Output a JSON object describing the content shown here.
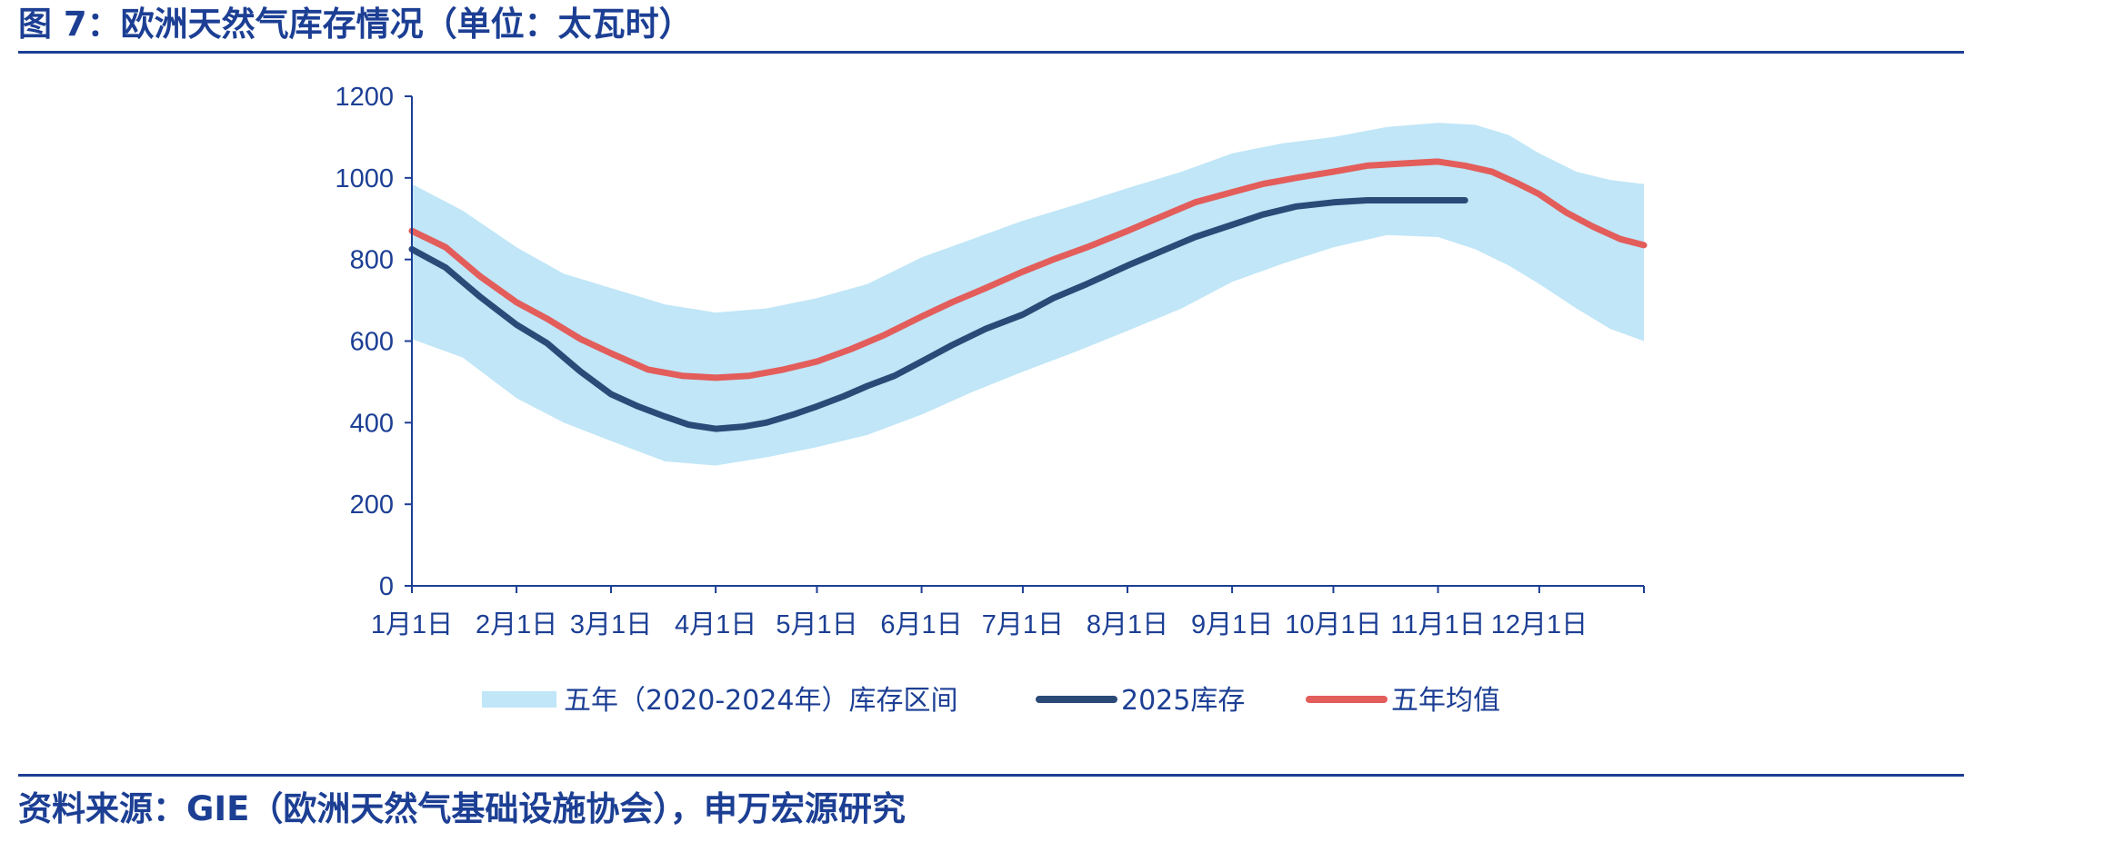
{
  "figure": {
    "title": "图 7：欧洲天然气库存情况（单位：太瓦时）",
    "source": "资料来源：GIE（欧洲天然气基础设施协会），申万宏源研究"
  },
  "colors": {
    "title": "#1c3f94",
    "band": "#c0e6f7",
    "line_2025": "#2a4a77",
    "line_avg": "#e35d5b",
    "axis": "#1c3f94"
  },
  "chart_data": {
    "type": "area",
    "title": "",
    "xlabel": "",
    "ylabel": "",
    "ylim": [
      0,
      1200
    ],
    "yticks": [
      0,
      200,
      400,
      600,
      800,
      1000,
      1200
    ],
    "x_domain_days": [
      0,
      365
    ],
    "xticks": [
      {
        "day": 0,
        "label": "1月1日"
      },
      {
        "day": 31,
        "label": "2月1日"
      },
      {
        "day": 59,
        "label": "3月1日"
      },
      {
        "day": 90,
        "label": "4月1日"
      },
      {
        "day": 120,
        "label": "5月1日"
      },
      {
        "day": 151,
        "label": "6月1日"
      },
      {
        "day": 181,
        "label": "7月1日"
      },
      {
        "day": 212,
        "label": "8月1日"
      },
      {
        "day": 243,
        "label": "9月1日"
      },
      {
        "day": 273,
        "label": "10月1日"
      },
      {
        "day": 304,
        "label": "11月1日"
      },
      {
        "day": 334,
        "label": "12月1日"
      }
    ],
    "grid": false,
    "legend_position": "bottom",
    "legend": [
      {
        "key": "band",
        "label": "五年（2020-2024年）库存区间"
      },
      {
        "key": "line_2025",
        "label": "2025库存"
      },
      {
        "key": "line_avg",
        "label": "五年均值"
      }
    ],
    "band": {
      "name": "五年（2020-2024年）库存区间",
      "points": [
        {
          "day": 0,
          "low": 605,
          "high": 985
        },
        {
          "day": 15,
          "low": 560,
          "high": 920
        },
        {
          "day": 31,
          "low": 460,
          "high": 830
        },
        {
          "day": 45,
          "low": 400,
          "high": 765
        },
        {
          "day": 59,
          "low": 355,
          "high": 730
        },
        {
          "day": 75,
          "low": 305,
          "high": 690
        },
        {
          "day": 90,
          "low": 295,
          "high": 670
        },
        {
          "day": 105,
          "low": 315,
          "high": 680
        },
        {
          "day": 120,
          "low": 340,
          "high": 705
        },
        {
          "day": 135,
          "low": 370,
          "high": 740
        },
        {
          "day": 151,
          "low": 420,
          "high": 805
        },
        {
          "day": 166,
          "low": 475,
          "high": 850
        },
        {
          "day": 181,
          "low": 525,
          "high": 895
        },
        {
          "day": 197,
          "low": 575,
          "high": 935
        },
        {
          "day": 212,
          "low": 625,
          "high": 975
        },
        {
          "day": 228,
          "low": 680,
          "high": 1015
        },
        {
          "day": 243,
          "low": 745,
          "high": 1060
        },
        {
          "day": 258,
          "low": 790,
          "high": 1085
        },
        {
          "day": 273,
          "low": 830,
          "high": 1100
        },
        {
          "day": 289,
          "low": 860,
          "high": 1125
        },
        {
          "day": 304,
          "low": 855,
          "high": 1135
        },
        {
          "day": 315,
          "low": 825,
          "high": 1130
        },
        {
          "day": 325,
          "low": 785,
          "high": 1105
        },
        {
          "day": 334,
          "low": 740,
          "high": 1060
        },
        {
          "day": 345,
          "low": 680,
          "high": 1015
        },
        {
          "day": 355,
          "low": 630,
          "high": 995
        },
        {
          "day": 365,
          "low": 600,
          "high": 985
        }
      ]
    },
    "series": [
      {
        "name": "2025库存",
        "key": "line_2025",
        "points": [
          {
            "day": 0,
            "value": 825
          },
          {
            "day": 10,
            "value": 780
          },
          {
            "day": 20,
            "value": 710
          },
          {
            "day": 31,
            "value": 640
          },
          {
            "day": 40,
            "value": 595
          },
          {
            "day": 50,
            "value": 525
          },
          {
            "day": 59,
            "value": 470
          },
          {
            "day": 67,
            "value": 440
          },
          {
            "day": 75,
            "value": 415
          },
          {
            "day": 82,
            "value": 395
          },
          {
            "day": 90,
            "value": 385
          },
          {
            "day": 98,
            "value": 390
          },
          {
            "day": 105,
            "value": 400
          },
          {
            "day": 113,
            "value": 420
          },
          {
            "day": 120,
            "value": 440
          },
          {
            "day": 128,
            "value": 465
          },
          {
            "day": 135,
            "value": 490
          },
          {
            "day": 143,
            "value": 515
          },
          {
            "day": 151,
            "value": 550
          },
          {
            "day": 160,
            "value": 590
          },
          {
            "day": 170,
            "value": 630
          },
          {
            "day": 181,
            "value": 665
          },
          {
            "day": 190,
            "value": 705
          },
          {
            "day": 200,
            "value": 740
          },
          {
            "day": 212,
            "value": 785
          },
          {
            "day": 222,
            "value": 820
          },
          {
            "day": 232,
            "value": 855
          },
          {
            "day": 243,
            "value": 885
          },
          {
            "day": 252,
            "value": 910
          },
          {
            "day": 262,
            "value": 930
          },
          {
            "day": 273,
            "value": 940
          },
          {
            "day": 283,
            "value": 945
          },
          {
            "day": 295,
            "value": 945
          },
          {
            "day": 304,
            "value": 945
          },
          {
            "day": 312,
            "value": 945
          }
        ]
      },
      {
        "name": "五年均值",
        "key": "line_avg",
        "points": [
          {
            "day": 0,
            "value": 870
          },
          {
            "day": 10,
            "value": 830
          },
          {
            "day": 20,
            "value": 760
          },
          {
            "day": 31,
            "value": 695
          },
          {
            "day": 40,
            "value": 655
          },
          {
            "day": 50,
            "value": 605
          },
          {
            "day": 59,
            "value": 570
          },
          {
            "day": 70,
            "value": 530
          },
          {
            "day": 80,
            "value": 515
          },
          {
            "day": 90,
            "value": 510
          },
          {
            "day": 100,
            "value": 515
          },
          {
            "day": 110,
            "value": 530
          },
          {
            "day": 120,
            "value": 550
          },
          {
            "day": 130,
            "value": 580
          },
          {
            "day": 140,
            "value": 615
          },
          {
            "day": 151,
            "value": 660
          },
          {
            "day": 160,
            "value": 695
          },
          {
            "day": 170,
            "value": 730
          },
          {
            "day": 181,
            "value": 770
          },
          {
            "day": 190,
            "value": 800
          },
          {
            "day": 200,
            "value": 830
          },
          {
            "day": 212,
            "value": 870
          },
          {
            "day": 222,
            "value": 905
          },
          {
            "day": 232,
            "value": 940
          },
          {
            "day": 243,
            "value": 965
          },
          {
            "day": 252,
            "value": 985
          },
          {
            "day": 262,
            "value": 1000
          },
          {
            "day": 273,
            "value": 1015
          },
          {
            "day": 283,
            "value": 1030
          },
          {
            "day": 293,
            "value": 1035
          },
          {
            "day": 304,
            "value": 1040
          },
          {
            "day": 312,
            "value": 1030
          },
          {
            "day": 320,
            "value": 1015
          },
          {
            "day": 328,
            "value": 985
          },
          {
            "day": 334,
            "value": 960
          },
          {
            "day": 342,
            "value": 915
          },
          {
            "day": 350,
            "value": 880
          },
          {
            "day": 358,
            "value": 850
          },
          {
            "day": 365,
            "value": 835
          }
        ]
      }
    ]
  }
}
